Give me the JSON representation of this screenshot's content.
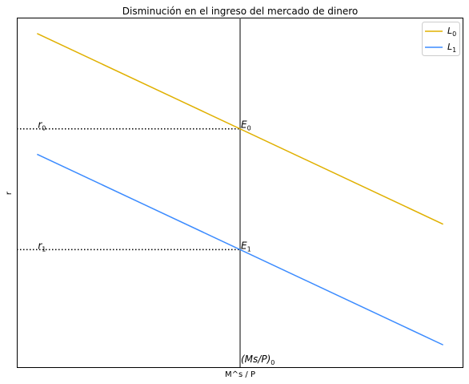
{
  "chart_data": {
    "type": "line",
    "title": "Disminución en el ingreso del mercado de dinero",
    "xlabel": "M^s / P",
    "ylabel": "r",
    "xlim": [
      -0.05,
      1.05
    ],
    "ylim": [
      -0.05,
      1.05
    ],
    "grid": false,
    "legend_position": "top-right",
    "series": [
      {
        "name": "L_0",
        "color": "#e0b000",
        "x": [
          0,
          1
        ],
        "y": [
          1.0,
          0.4
        ]
      },
      {
        "name": "L_1",
        "color": "#3b8bff",
        "x": [
          0,
          1
        ],
        "y": [
          0.62,
          0.02
        ]
      }
    ],
    "money_supply_line": {
      "x": 0.5,
      "color": "#555555",
      "label": "(Ms/P)",
      "subscript": "0"
    },
    "equilibria": [
      {
        "label": "E",
        "subscript": "0",
        "x": 0.5,
        "y": 0.7,
        "rate_label": "r",
        "rate_subscript": "0"
      },
      {
        "label": "E",
        "subscript": "1",
        "x": 0.5,
        "y": 0.32,
        "rate_label": "r",
        "rate_subscript": "1"
      }
    ]
  }
}
